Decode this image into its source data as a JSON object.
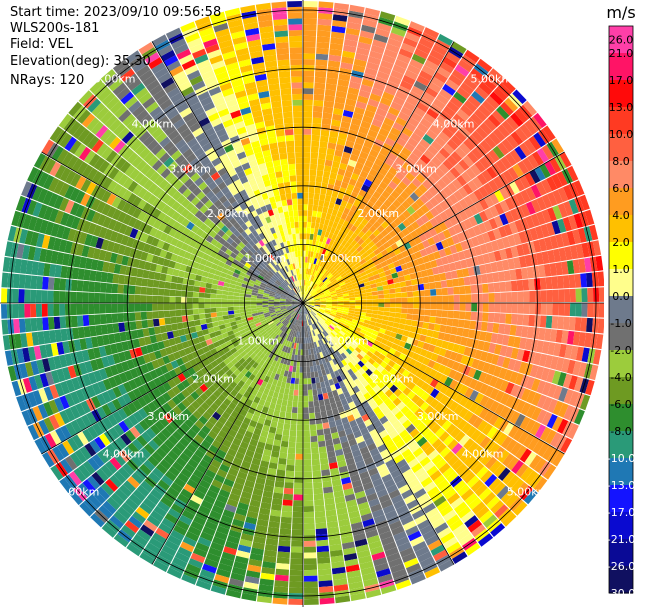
{
  "header": {
    "start_time": "Start time: 2023/09/10 09:56:58",
    "instrument": "WLS200s-181",
    "field": "Field: VEL",
    "elevation": "Elevation(deg): 35.30",
    "nrays": "NRays: 120"
  },
  "chart_data": {
    "type": "ppi",
    "field": "VEL",
    "units": "m/s",
    "nrays": 120,
    "range_ring_labels": [
      "1.00km",
      "2.00km",
      "3.00km",
      "4.00km",
      "5.00km"
    ],
    "range_rings_km": [
      1,
      2,
      3,
      4,
      5
    ],
    "colorbar": {
      "title": "m/s",
      "ticks": [
        "26.0",
        "21.0",
        "17.0",
        "13.0",
        "10.0",
        "8.0",
        "6.0",
        "4.0",
        "2.0",
        "1.0",
        "0.0",
        "-1.0",
        "-2.0",
        "-4.0",
        "-6.0",
        "-8.0",
        "-10.0",
        "-13.0",
        "-17.0",
        "-21.0",
        "-26.0",
        "-30.0"
      ],
      "colors": [
        "#ff3fa8",
        "#ff1466",
        "#ff0a0a",
        "#ff3a22",
        "#ff6040",
        "#ff8a66",
        "#ff9c20",
        "#ffc000",
        "#ffff00",
        "#fffe8c",
        "#6e7a8c",
        "#707070",
        "#9ccc3c",
        "#6e9a22",
        "#2e8e2e",
        "#2a9a78",
        "#1f78b4",
        "#1414ff",
        "#0a0ad0",
        "#0a0a96",
        "#101060"
      ]
    },
    "velocity_pattern": "mean wind toward east-northeast; positive velocities (orange/red) in northeast sector, negative velocities (green) in southwest sector, near-zero (gray) ring between"
  }
}
